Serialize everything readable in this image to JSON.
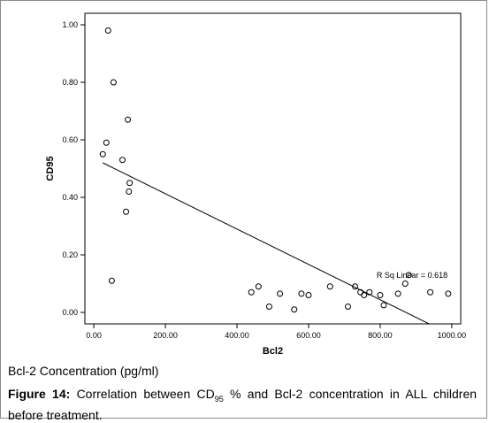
{
  "chart_data": {
    "type": "scatter",
    "xlabel": "Bcl2",
    "ylabel": "CD95",
    "xlim": [
      -25,
      1025
    ],
    "ylim": [
      -0.04,
      1.04
    ],
    "x_ticks": [
      0,
      200,
      400,
      600,
      800,
      1000
    ],
    "x_tick_labels": [
      "0.00",
      "200.00",
      "400.00",
      "600.00",
      "800.00",
      "1000.00"
    ],
    "y_ticks": [
      0,
      0.2,
      0.4,
      0.6,
      0.8,
      1.0
    ],
    "y_tick_labels": [
      "0.00",
      "0.20",
      "0.40",
      "0.60",
      "0.80",
      "1.00"
    ],
    "points": [
      {
        "x": 40,
        "y": 0.98
      },
      {
        "x": 55,
        "y": 0.8
      },
      {
        "x": 95,
        "y": 0.67
      },
      {
        "x": 35,
        "y": 0.59
      },
      {
        "x": 25,
        "y": 0.55
      },
      {
        "x": 80,
        "y": 0.53
      },
      {
        "x": 100,
        "y": 0.45
      },
      {
        "x": 98,
        "y": 0.42
      },
      {
        "x": 90,
        "y": 0.35
      },
      {
        "x": 50,
        "y": 0.11
      },
      {
        "x": 440,
        "y": 0.07
      },
      {
        "x": 460,
        "y": 0.09
      },
      {
        "x": 490,
        "y": 0.02
      },
      {
        "x": 520,
        "y": 0.065
      },
      {
        "x": 560,
        "y": 0.01
      },
      {
        "x": 580,
        "y": 0.065
      },
      {
        "x": 600,
        "y": 0.06
      },
      {
        "x": 660,
        "y": 0.09
      },
      {
        "x": 710,
        "y": 0.02
      },
      {
        "x": 730,
        "y": 0.09
      },
      {
        "x": 745,
        "y": 0.07
      },
      {
        "x": 755,
        "y": 0.06
      },
      {
        "x": 770,
        "y": 0.07
      },
      {
        "x": 800,
        "y": 0.06
      },
      {
        "x": 810,
        "y": 0.025
      },
      {
        "x": 850,
        "y": 0.065
      },
      {
        "x": 870,
        "y": 0.1
      },
      {
        "x": 880,
        "y": 0.13
      },
      {
        "x": 940,
        "y": 0.07
      },
      {
        "x": 990,
        "y": 0.065
      }
    ],
    "fit_line": {
      "x": [
        25,
        945
      ],
      "y": [
        0.52,
        -0.045
      ]
    },
    "annotation": {
      "text": "R Sq Linear = 0.618",
      "x": 790,
      "y": 0.12
    },
    "grid": false
  },
  "footer": {
    "concentration_label": "Bcl-2 Concentration (pg/ml)",
    "caption_bold": "Figure 14:",
    "caption_pre": " Correlation between CD",
    "caption_sub": "95",
    "caption_post": " % and Bcl-2 concentration in ALL children before treatment."
  }
}
